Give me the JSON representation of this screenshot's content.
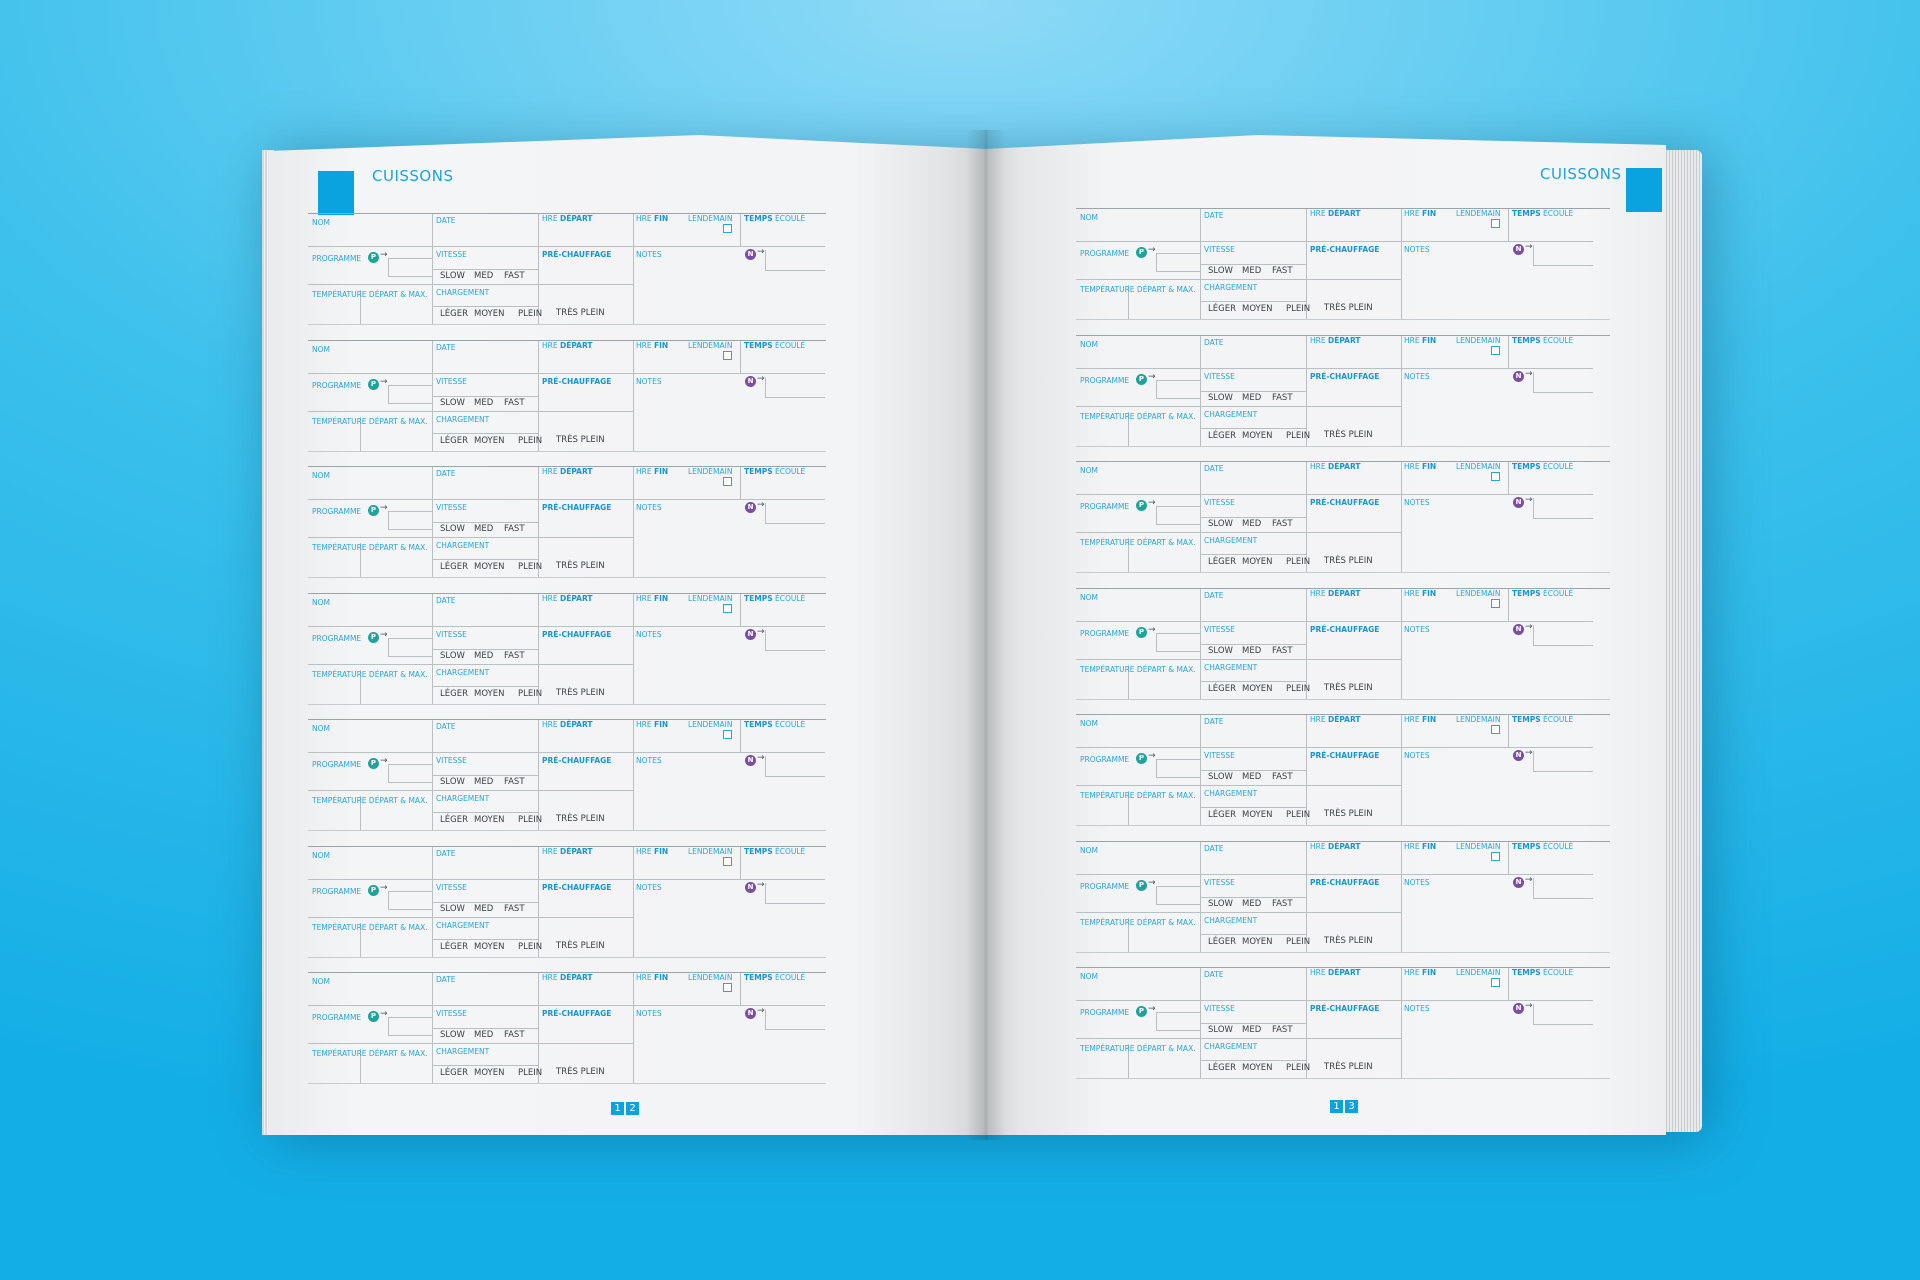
{
  "left_page": {
    "title": "CUISSONS",
    "page_digits": [
      "1",
      "2"
    ]
  },
  "right_page": {
    "title": "CUISSONS",
    "page_digits": [
      "1",
      "3"
    ]
  },
  "form": {
    "nom": "NOM",
    "date": "DATE",
    "hre": "HRE",
    "depart": "DÉPART",
    "fin": "FIN",
    "lendemain": "LENDEMAIN",
    "temps": "TEMPS",
    "ecoule": "ÉCOULÉ",
    "programme": "PROGRAMME",
    "badge_p": "P",
    "badge_n": "N",
    "arrow": "→",
    "vitesse": "VITESSE",
    "vitesse_options": [
      "SLOW",
      "MED",
      "FAST"
    ],
    "prechauffage": "PRÉ-CHAUFFAGE",
    "notes": "NOTES",
    "temperature": "TEMPÉRATURE DÉPART & MAX.",
    "chargement": "CHARGEMENT",
    "chargement_options": [
      "LÉGER",
      "MOYEN",
      "PLEIN",
      "TRÈS PLEIN"
    ]
  },
  "records_per_page": 7,
  "colors": {
    "accent": "#0aa3e0",
    "label": "#29a6d9",
    "badge_p": "#1fa39a",
    "badge_n": "#7a4fa3",
    "background": "#14aee6"
  }
}
